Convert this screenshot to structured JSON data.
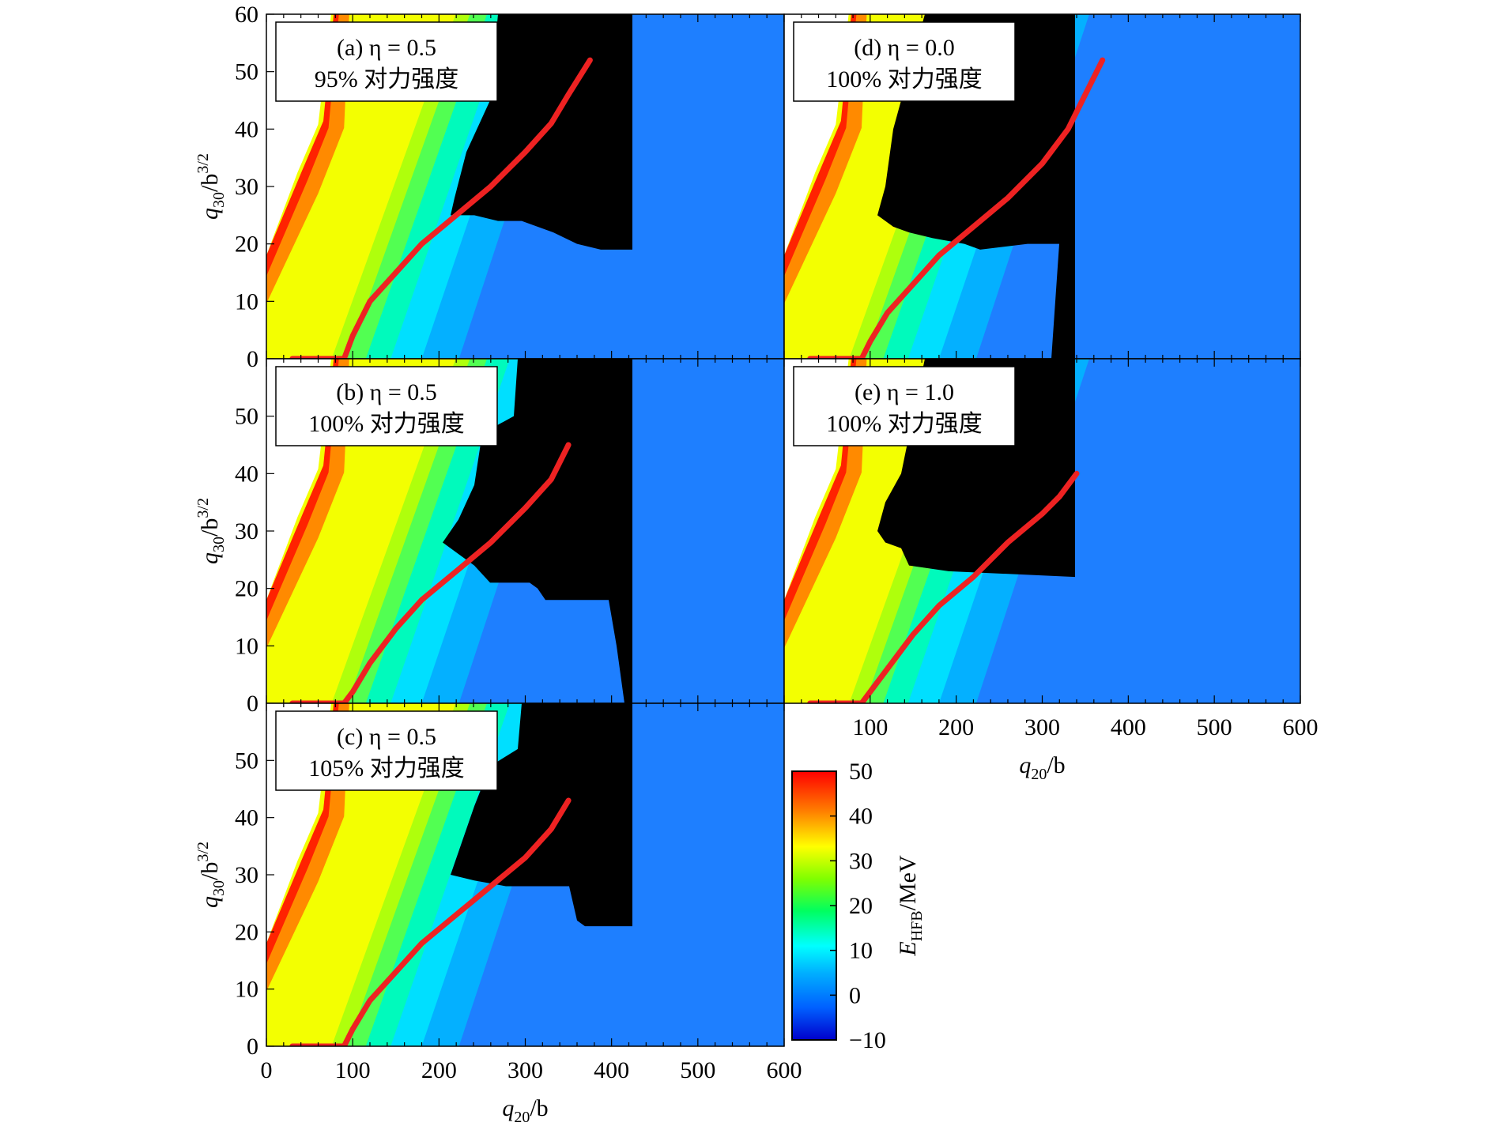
{
  "chart_data": [
    {
      "id": "a",
      "type": "heatmap",
      "label_line1": "(a) η = 0.5",
      "label_line2": "95% 对力强度",
      "pairing_strength_percent": 95,
      "eta": 0.5,
      "xlim": [
        0,
        600
      ],
      "ylim": [
        0,
        60
      ],
      "y_ticks": [
        0,
        10,
        20,
        30,
        40,
        50,
        60
      ],
      "black_region_boundary": [
        [
          630,
          60
        ],
        [
          620,
          45
        ],
        [
          590,
          36
        ],
        [
          575,
          28
        ],
        [
          570,
          25
        ],
        [
          600,
          25
        ],
        [
          630,
          24
        ],
        [
          660,
          24
        ],
        [
          680,
          23
        ],
        [
          700,
          22
        ],
        [
          730,
          20
        ],
        [
          760,
          19
        ],
        [
          800,
          19
        ],
        [
          800,
          60
        ]
      ],
      "fission_path": {
        "q20": [
          30,
          90,
          100,
          120,
          150,
          180,
          220,
          260,
          300,
          330,
          350,
          375
        ],
        "q30": [
          0,
          0,
          4,
          10,
          15,
          20,
          25,
          30,
          36,
          41,
          46,
          52
        ]
      }
    },
    {
      "id": "b",
      "type": "heatmap",
      "label_line1": "(b) η = 0.5",
      "label_line2": "100% 对力强度",
      "pairing_strength_percent": 100,
      "eta": 0.5,
      "xlim": [
        0,
        600
      ],
      "ylim": [
        0,
        60
      ],
      "y_ticks": [
        0,
        10,
        20,
        30,
        40,
        50
      ],
      "black_region_boundary": [
        [
          655,
          60
        ],
        [
          650,
          50
        ],
        [
          610,
          47
        ],
        [
          600,
          38
        ],
        [
          580,
          32
        ],
        [
          560,
          28
        ],
        [
          580,
          26
        ],
        [
          600,
          24
        ],
        [
          620,
          21
        ],
        [
          670,
          21
        ],
        [
          680,
          20
        ],
        [
          690,
          18
        ],
        [
          770,
          18
        ],
        [
          780,
          10
        ],
        [
          790,
          0
        ],
        [
          800,
          0
        ],
        [
          800,
          60
        ]
      ],
      "fission_path": {
        "q20": [
          30,
          90,
          100,
          120,
          150,
          180,
          220,
          260,
          300,
          330,
          350
        ],
        "q30": [
          0,
          0,
          2,
          7,
          13,
          18,
          23,
          28,
          34,
          39,
          45
        ]
      }
    },
    {
      "id": "c",
      "type": "heatmap",
      "label_line1": "(c) η = 0.5",
      "label_line2": "105% 对力强度",
      "pairing_strength_percent": 105,
      "eta": 0.5,
      "xlim": [
        0,
        600
      ],
      "ylim": [
        0,
        60
      ],
      "x_ticks": [
        0,
        100,
        200,
        300,
        400,
        500,
        600
      ],
      "y_ticks": [
        0,
        10,
        20,
        30,
        40,
        50
      ],
      "black_region_boundary": [
        [
          660,
          60
        ],
        [
          655,
          52
        ],
        [
          620,
          49
        ],
        [
          600,
          42
        ],
        [
          585,
          36
        ],
        [
          570,
          30
        ],
        [
          600,
          29
        ],
        [
          640,
          28
        ],
        [
          680,
          28
        ],
        [
          720,
          28
        ],
        [
          730,
          22
        ],
        [
          740,
          21
        ],
        [
          800,
          21
        ],
        [
          800,
          60
        ]
      ],
      "fission_path": {
        "q20": [
          30,
          90,
          100,
          120,
          150,
          180,
          220,
          260,
          300,
          330,
          350
        ],
        "q30": [
          0,
          0,
          3,
          8,
          13,
          18,
          23,
          28,
          33,
          38,
          43
        ]
      }
    },
    {
      "id": "d",
      "type": "heatmap",
      "label_line1": "(d) η = 0.0",
      "label_line2": "100% 对力强度",
      "pairing_strength_percent": 100,
      "eta": 0.0,
      "xlim": [
        0,
        600
      ],
      "ylim": [
        0,
        60
      ],
      "black_region_boundary": [
        [
          1170,
          60
        ],
        [
          1150,
          50
        ],
        [
          1130,
          40
        ],
        [
          1120,
          30
        ],
        [
          1110,
          25
        ],
        [
          1130,
          23
        ],
        [
          1150,
          22
        ],
        [
          1180,
          21
        ],
        [
          1220,
          20
        ],
        [
          1240,
          19
        ],
        [
          1300,
          20
        ],
        [
          1320,
          20
        ],
        [
          1340,
          20
        ],
        [
          1330,
          0
        ],
        [
          1360,
          0
        ],
        [
          1360,
          60
        ]
      ],
      "fission_path": {
        "q20": [
          30,
          90,
          100,
          120,
          150,
          180,
          220,
          260,
          300,
          330,
          350,
          370
        ],
        "q30": [
          0,
          0,
          3,
          8,
          13,
          18,
          23,
          28,
          34,
          40,
          46,
          52
        ]
      }
    },
    {
      "id": "e",
      "type": "heatmap",
      "label_line1": "(e) η = 1.0",
      "label_line2": "100% 对力强度",
      "pairing_strength_percent": 100,
      "eta": 1.0,
      "xlim": [
        0,
        600
      ],
      "ylim": [
        0,
        60
      ],
      "x_ticks": [
        100,
        200,
        300,
        400,
        500,
        600
      ],
      "black_region_boundary": [
        [
          1170,
          60
        ],
        [
          1155,
          50
        ],
        [
          1140,
          40
        ],
        [
          1120,
          35
        ],
        [
          1110,
          30
        ],
        [
          1120,
          28
        ],
        [
          1140,
          27
        ],
        [
          1150,
          24
        ],
        [
          1200,
          23
        ],
        [
          1360,
          22
        ],
        [
          1360,
          60
        ]
      ],
      "fission_path": {
        "q20": [
          30,
          90,
          100,
          120,
          150,
          180,
          220,
          260,
          300,
          320,
          340
        ],
        "q30": [
          0,
          0,
          2,
          6,
          12,
          17,
          22,
          28,
          33,
          36,
          40
        ]
      }
    }
  ],
  "axes": {
    "x_title_main": "q",
    "x_title_sub": "20",
    "x_title_unit": "/b",
    "y_title_main": "q",
    "y_title_sub": "30",
    "y_title_unit": "/b",
    "y_title_sup": "3/2"
  },
  "colorbar": {
    "title_main": "E",
    "title_sub": "HFB",
    "title_unit": "/MeV",
    "min": -10,
    "max": 50,
    "ticks": [
      50,
      40,
      30,
      20,
      10,
      0,
      -10
    ],
    "tick_labels": [
      "50",
      "40",
      "30",
      "20",
      "10",
      "0",
      "−10"
    ],
    "colors": [
      "#0000ff",
      "#1e90ff",
      "#00ffff",
      "#00ff80",
      "#80ff00",
      "#ffff00",
      "#ff8000",
      "#ff0000"
    ]
  },
  "path_color": "#ee2222"
}
